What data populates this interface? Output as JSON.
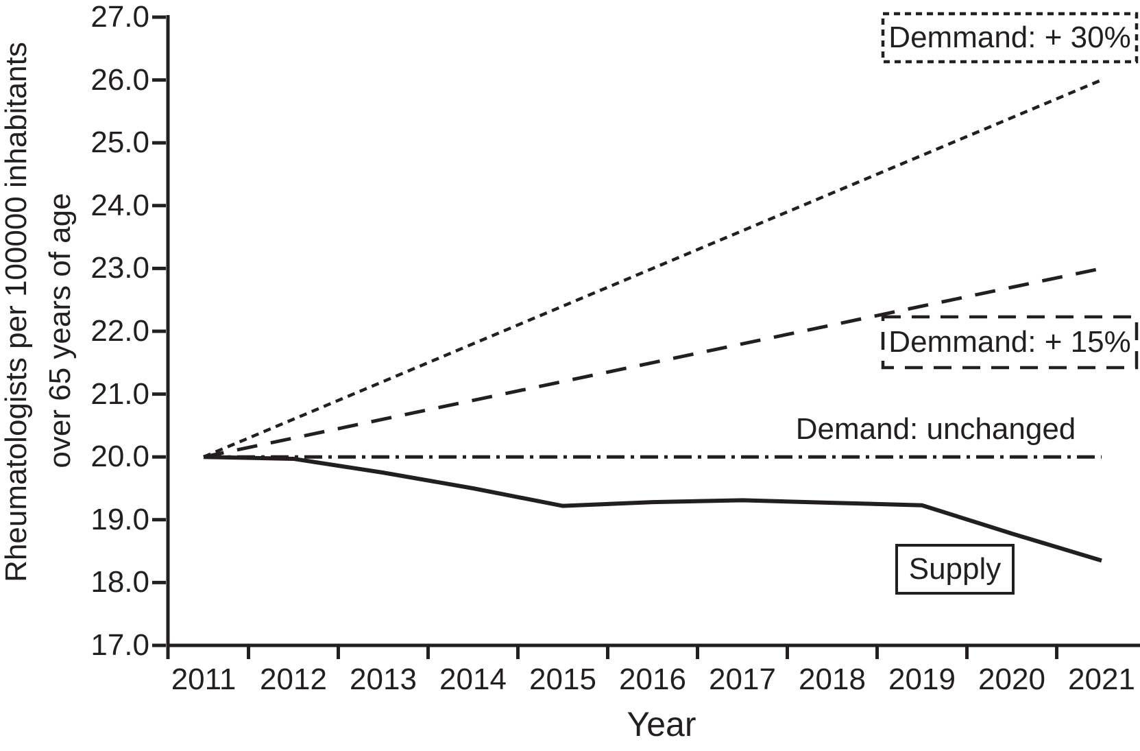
{
  "figure": {
    "background": "#ffffff",
    "ink_color": "#231f20"
  },
  "chart_data": {
    "type": "line",
    "title": "",
    "xlabel": "Year",
    "ylabel": "Rheumatologists per 100000 inhabitants over 65 years of age",
    "ylabel_line1": "Rheumatologists per 100000 inhabitants",
    "ylabel_line2": "over 65 years of age",
    "x": [
      2011,
      2012,
      2013,
      2014,
      2015,
      2016,
      2017,
      2018,
      2019,
      2020,
      2021
    ],
    "x_tick_labels": [
      "2011",
      "2012",
      "2013",
      "2014",
      "2015",
      "2016",
      "2017",
      "2018",
      "2019",
      "2020",
      "2021"
    ],
    "y_tick_values": [
      27,
      26,
      25,
      24,
      23,
      22,
      21,
      20,
      19,
      18,
      17
    ],
    "y_tick_labels": [
      "27.0",
      "26.0",
      "25.0",
      "24.0",
      "23.0",
      "22.0",
      "21.0",
      "20.0",
      "19.0",
      "18.0",
      "17.0"
    ],
    "xlim": [
      2011,
      2021
    ],
    "ylim": [
      17.0,
      27.0
    ],
    "grid": false,
    "legend_position": "inline-annotations",
    "series": [
      {
        "name": "demand-plus-30",
        "label": "Demmand: + 30%",
        "line_style": "dotted",
        "values": [
          20.0,
          20.6,
          21.2,
          21.8,
          22.4,
          23.0,
          23.6,
          24.2,
          24.8,
          25.4,
          26.0
        ]
      },
      {
        "name": "demand-plus-15",
        "label": "Demmand: + 15%",
        "line_style": "long-dash",
        "values": [
          20.0,
          20.3,
          20.6,
          20.9,
          21.2,
          21.5,
          21.8,
          22.1,
          22.4,
          22.7,
          23.0
        ]
      },
      {
        "name": "demand-unchanged",
        "label": "Demand: unchanged",
        "line_style": "dash-dot",
        "values": [
          20.0,
          20.0,
          20.0,
          20.0,
          20.0,
          20.0,
          20.0,
          20.0,
          20.0,
          20.0,
          20.0
        ]
      },
      {
        "name": "supply",
        "label": "Supply",
        "line_style": "solid",
        "values": [
          20.0,
          19.97,
          19.75,
          19.5,
          19.22,
          19.28,
          19.31,
          19.27,
          19.23,
          18.78,
          18.35
        ]
      }
    ],
    "annotations": [
      {
        "name": "demand-30-label",
        "text": "Demmand: + 30%",
        "border": "dotted"
      },
      {
        "name": "demand-15-label",
        "text": "Demmand: + 15%",
        "border": "dashed"
      },
      {
        "name": "demand-unchanged-label",
        "text": "Demand: unchanged",
        "border": "none"
      },
      {
        "name": "supply-label",
        "text": "Supply",
        "border": "solid"
      }
    ]
  }
}
